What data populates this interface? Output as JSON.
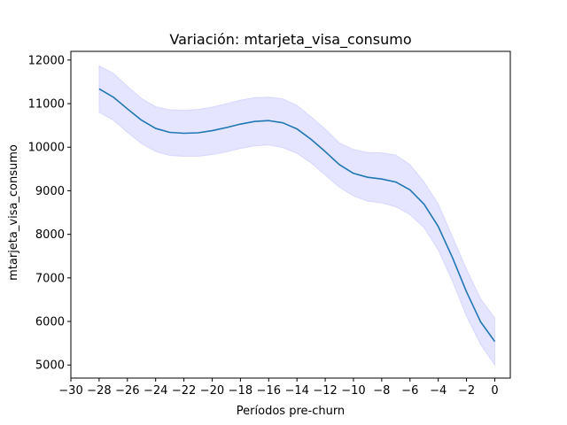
{
  "chart_data": {
    "type": "line",
    "title": "Variación: mtarjeta_visa_consumo",
    "xlabel": "Períodos pre-churn",
    "ylabel": "mtarjeta_visa_consumo",
    "xlim": [
      -30,
      1.1
    ],
    "ylim": [
      4700,
      12200
    ],
    "x_ticks": [
      -30,
      -28,
      -26,
      -24,
      -22,
      -20,
      -18,
      -16,
      -14,
      -12,
      -10,
      -8,
      -6,
      -4,
      -2,
      0
    ],
    "x_tick_labels": [
      "−30",
      "−28",
      "−26",
      "−24",
      "−22",
      "−20",
      "−18",
      "−16",
      "−14",
      "−12",
      "−10",
      "−8",
      "−6",
      "−4",
      "−2",
      "0"
    ],
    "y_ticks": [
      5000,
      6000,
      7000,
      8000,
      9000,
      10000,
      11000,
      12000
    ],
    "y_tick_labels": [
      "5000",
      "6000",
      "7000",
      "8000",
      "9000",
      "10000",
      "11000",
      "12000"
    ],
    "grid": false,
    "series": [
      {
        "color": "#1f77b4",
        "band_color": "#0000ff",
        "x": [
          -28,
          -27,
          -26,
          -25,
          -24,
          -23,
          -22,
          -21,
          -20,
          -19,
          -18,
          -17,
          -16,
          -15,
          -14,
          -13,
          -12,
          -11,
          -10,
          -9,
          -8,
          -7,
          -6,
          -5,
          -4,
          -3,
          -2,
          -1,
          0
        ],
        "y": [
          11340,
          11150,
          10880,
          10620,
          10430,
          10340,
          10320,
          10330,
          10380,
          10450,
          10530,
          10590,
          10610,
          10560,
          10420,
          10180,
          9900,
          9600,
          9400,
          9310,
          9270,
          9200,
          9020,
          8690,
          8180,
          7470,
          6680,
          5990,
          5540
        ],
        "y_upper": [
          11870,
          11700,
          11400,
          11120,
          10930,
          10860,
          10850,
          10870,
          10920,
          11000,
          11080,
          11140,
          11150,
          11110,
          10960,
          10700,
          10420,
          10100,
          9950,
          9880,
          9870,
          9820,
          9600,
          9200,
          8700,
          7950,
          7200,
          6520,
          6080
        ],
        "y_lower": [
          10800,
          10620,
          10340,
          10080,
          9900,
          9810,
          9790,
          9790,
          9830,
          9890,
          9970,
          10030,
          10050,
          9990,
          9860,
          9640,
          9360,
          9080,
          8880,
          8760,
          8720,
          8630,
          8450,
          8150,
          7640,
          6930,
          6120,
          5470,
          5000
        ]
      }
    ]
  }
}
